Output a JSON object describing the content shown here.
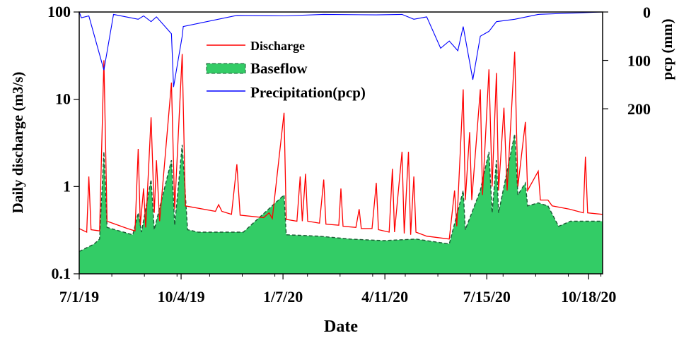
{
  "chart_data": {
    "type": "line",
    "xlabel": "Date",
    "ylabel": "Daily discharge (m3/s)",
    "y2label": "pcp (mm)",
    "yscale": "log",
    "ylim": [
      0.1,
      100
    ],
    "y2lim_inverted": [
      0,
      200
    ],
    "xlim": [
      "7/1/19",
      "10/31/20"
    ],
    "x_tick_labels": [
      "7/1/19",
      "10/4/19",
      "1/7/20",
      "4/11/20",
      "7/15/20",
      "10/18/20"
    ],
    "y_tick_labels": [
      "0.1",
      "1",
      "10",
      "100"
    ],
    "y2_tick_labels": [
      "0",
      "100",
      "200"
    ],
    "grid": false,
    "legend_position": "top-center",
    "colors": {
      "discharge": "#ff0000",
      "baseflow": "#33cc66",
      "baseflow_edge": "#1a5a34",
      "precipitation": "#0000ff"
    },
    "series": [
      {
        "name": "Discharge",
        "style": "red-line",
        "points": [
          [
            "7/1/19",
            0.33
          ],
          [
            "7/8/19",
            0.3
          ],
          [
            "7/10/19",
            1.3
          ],
          [
            "7/12/19",
            0.32
          ],
          [
            "7/20/19",
            0.31
          ],
          [
            "7/24/19",
            28
          ],
          [
            "7/27/19",
            0.4
          ],
          [
            "8/15/19",
            0.33
          ],
          [
            "8/22/19",
            0.31
          ],
          [
            "8/25/19",
            2.7
          ],
          [
            "8/27/19",
            0.36
          ],
          [
            "8/30/19",
            0.95
          ],
          [
            "9/1/19",
            0.34
          ],
          [
            "9/6/19",
            6.2
          ],
          [
            "9/9/19",
            0.5
          ],
          [
            "9/11/19",
            2.0
          ],
          [
            "9/14/19",
            0.4
          ],
          [
            "9/25/19",
            15.5
          ],
          [
            "9/28/19",
            0.55
          ],
          [
            "10/5/19",
            33
          ],
          [
            "10/8/19",
            0.6
          ],
          [
            "11/5/19",
            0.52
          ],
          [
            "11/8/19",
            0.62
          ],
          [
            "11/11/19",
            0.52
          ],
          [
            "11/20/19",
            0.48
          ],
          [
            "11/25/19",
            1.8
          ],
          [
            "11/28/19",
            0.47
          ],
          [
            "12/20/19",
            0.44
          ],
          [
            "12/25/19",
            0.5
          ],
          [
            "12/28/19",
            0.43
          ],
          [
            "1/8/20",
            7
          ],
          [
            "1/10/20",
            0.42
          ],
          [
            "1/20/20",
            0.4
          ],
          [
            "1/23/20",
            1.3
          ],
          [
            "1/25/20",
            0.4
          ],
          [
            "1/28/20",
            1.4
          ],
          [
            "1/30/20",
            0.4
          ],
          [
            "2/10/20",
            0.38
          ],
          [
            "2/14/20",
            1.2
          ],
          [
            "2/16/20",
            0.37
          ],
          [
            "2/28/20",
            0.36
          ],
          [
            "3/1/20",
            0.95
          ],
          [
            "3/3/20",
            0.35
          ],
          [
            "3/15/20",
            0.34
          ],
          [
            "3/18/20",
            0.55
          ],
          [
            "3/20/20",
            0.33
          ],
          [
            "3/30/20",
            0.33
          ],
          [
            "4/3/20",
            1.1
          ],
          [
            "4/5/20",
            0.32
          ],
          [
            "4/15/20",
            0.3
          ],
          [
            "4/18/20",
            1.6
          ],
          [
            "4/20/20",
            0.3
          ],
          [
            "4/27/20",
            2.5
          ],
          [
            "4/29/20",
            0.29
          ],
          [
            "5/3/20",
            2.5
          ],
          [
            "5/5/20",
            0.28
          ],
          [
            "5/8/20",
            1.3
          ],
          [
            "5/10/20",
            0.3
          ],
          [
            "5/20/20",
            0.27
          ],
          [
            "6/10/20",
            0.25
          ],
          [
            "6/15/20",
            0.9
          ],
          [
            "6/17/20",
            0.35
          ],
          [
            "6/23/20",
            13
          ],
          [
            "6/25/20",
            0.7
          ],
          [
            "6/29/20",
            4.2
          ],
          [
            "7/1/20",
            0.7
          ],
          [
            "7/9/20",
            13
          ],
          [
            "7/11/20",
            0.8
          ],
          [
            "7/17/20",
            22
          ],
          [
            "7/20/20",
            1.0
          ],
          [
            "7/24/20",
            20
          ],
          [
            "7/26/20",
            0.9
          ],
          [
            "7/31/20",
            8
          ],
          [
            "8/3/20",
            0.9
          ],
          [
            "8/10/20",
            35
          ],
          [
            "8/13/20",
            1.0
          ],
          [
            "8/20/20",
            5.5
          ],
          [
            "8/22/20",
            0.9
          ],
          [
            "9/1/20",
            1.5
          ],
          [
            "9/3/20",
            0.7
          ],
          [
            "9/10/20",
            0.7
          ],
          [
            "9/14/20",
            0.6
          ],
          [
            "9/30/20",
            0.55
          ],
          [
            "10/13/20",
            0.5
          ],
          [
            "10/15/20",
            2.2
          ],
          [
            "10/17/20",
            0.5
          ],
          [
            "10/31/20",
            0.48
          ]
        ]
      },
      {
        "name": "Baseflow",
        "style": "green-area-dashed-edge",
        "points": [
          [
            "7/1/19",
            0.18
          ],
          [
            "7/15/19",
            0.22
          ],
          [
            "7/20/19",
            0.25
          ],
          [
            "7/24/19",
            2.5
          ],
          [
            "7/27/19",
            0.34
          ],
          [
            "8/20/19",
            0.28
          ],
          [
            "8/25/19",
            0.5
          ],
          [
            "8/28/19",
            0.3
          ],
          [
            "9/6/19",
            1.2
          ],
          [
            "9/9/19",
            0.32
          ],
          [
            "9/25/19",
            2
          ],
          [
            "9/28/19",
            0.36
          ],
          [
            "10/5/19",
            3
          ],
          [
            "10/10/19",
            0.32
          ],
          [
            "10/20/19",
            0.3
          ],
          [
            "11/10/19",
            0.3
          ],
          [
            "12/1/19",
            0.3
          ],
          [
            "1/8/20",
            0.8
          ],
          [
            "1/10/20",
            0.28
          ],
          [
            "2/10/20",
            0.27
          ],
          [
            "3/10/20",
            0.25
          ],
          [
            "4/10/20",
            0.24
          ],
          [
            "5/10/20",
            0.25
          ],
          [
            "6/10/20",
            0.22
          ],
          [
            "6/23/20",
            0.9
          ],
          [
            "6/25/20",
            0.32
          ],
          [
            "7/9/20",
            0.9
          ],
          [
            "7/17/20",
            2.5
          ],
          [
            "7/20/20",
            0.5
          ],
          [
            "7/24/20",
            2.0
          ],
          [
            "7/26/20",
            0.5
          ],
          [
            "8/10/20",
            4
          ],
          [
            "8/13/20",
            0.8
          ],
          [
            "8/20/20",
            1.1
          ],
          [
            "8/22/20",
            0.6
          ],
          [
            "9/1/20",
            0.65
          ],
          [
            "9/10/20",
            0.6
          ],
          [
            "9/20/20",
            0.35
          ],
          [
            "10/1/20",
            0.4
          ],
          [
            "10/31/20",
            0.4
          ]
        ]
      },
      {
        "name": "Precipitation(pcp)",
        "style": "blue-line-inverted",
        "points": [
          [
            "7/1/19",
            0
          ],
          [
            "7/3/19",
            12
          ],
          [
            "7/10/19",
            8
          ],
          [
            "7/24/19",
            120
          ],
          [
            "8/2/19",
            5
          ],
          [
            "8/25/19",
            15
          ],
          [
            "8/30/19",
            8
          ],
          [
            "9/6/19",
            20
          ],
          [
            "9/11/19",
            10
          ],
          [
            "9/25/19",
            45
          ],
          [
            "9/27/19",
            155
          ],
          [
            "10/5/19",
            50
          ],
          [
            "10/6/19",
            30
          ],
          [
            "11/25/19",
            7
          ],
          [
            "1/8/20",
            8
          ],
          [
            "2/14/20",
            5
          ],
          [
            "4/3/20",
            6
          ],
          [
            "4/27/20",
            5
          ],
          [
            "5/8/20",
            15
          ],
          [
            "5/20/20",
            10
          ],
          [
            "6/2/20",
            75
          ],
          [
            "6/10/20",
            60
          ],
          [
            "6/18/20",
            80
          ],
          [
            "6/23/20",
            30
          ],
          [
            "7/2/20",
            140
          ],
          [
            "7/9/20",
            50
          ],
          [
            "7/17/20",
            40
          ],
          [
            "7/24/20",
            20
          ],
          [
            "8/10/20",
            15
          ],
          [
            "9/1/20",
            5
          ],
          [
            "10/31/20",
            0
          ]
        ]
      }
    ]
  }
}
